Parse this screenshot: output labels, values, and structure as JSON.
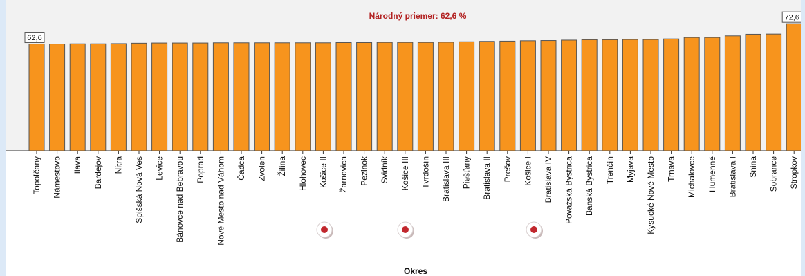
{
  "chart_data": {
    "type": "bar",
    "xlabel": "Okres",
    "ylabel": "",
    "ylim": [
      10,
      73
    ],
    "reference_line": {
      "label": "Národný priemer: 62,6 %",
      "value": 62.6,
      "color": "#ff4d4d"
    },
    "bar_color": "#f7941d",
    "categories": [
      "Topoľčany",
      "Námestovo",
      "Ilava",
      "Bardejov",
      "Nitra",
      "Spišská Nová Ves",
      "Levice",
      "Bánovce nad Bebravou",
      "Poprad",
      "Nové Mesto nad Váhom",
      "Čadca",
      "Zvolen",
      "Žilina",
      "Hlohovec",
      "Košice II",
      "Žarnovica",
      "Pezinok",
      "Svidník",
      "Košice III",
      "Tvrdošín",
      "Bratislava III",
      "Piešťany",
      "Bratislava II",
      "Prešov",
      "Košice I",
      "Bratislava IV",
      "Považská Bystrica",
      "Banská Bystrica",
      "Trenčín",
      "Myjava",
      "Kysucké Nové Mesto",
      "Trnava",
      "Michalovce",
      "Humenné",
      "Bratislava I",
      "Snina",
      "Sobrance",
      "Stropkov"
    ],
    "values": [
      62.6,
      62.6,
      62.7,
      62.7,
      62.8,
      63.0,
      63.1,
      63.1,
      63.1,
      63.2,
      63.2,
      63.2,
      63.2,
      63.2,
      63.2,
      63.3,
      63.3,
      63.4,
      63.4,
      63.4,
      63.5,
      63.7,
      63.9,
      64.0,
      64.2,
      64.3,
      64.5,
      64.7,
      64.7,
      64.8,
      64.8,
      65.1,
      65.8,
      65.8,
      66.6,
      67.4,
      67.5,
      72.6
    ],
    "data_labels": [
      {
        "index": 0,
        "text": "62,6"
      },
      {
        "index": 37,
        "text": "72,6"
      }
    ]
  },
  "markers": {
    "count": 3,
    "icon": "red-dot-marker-icon"
  }
}
